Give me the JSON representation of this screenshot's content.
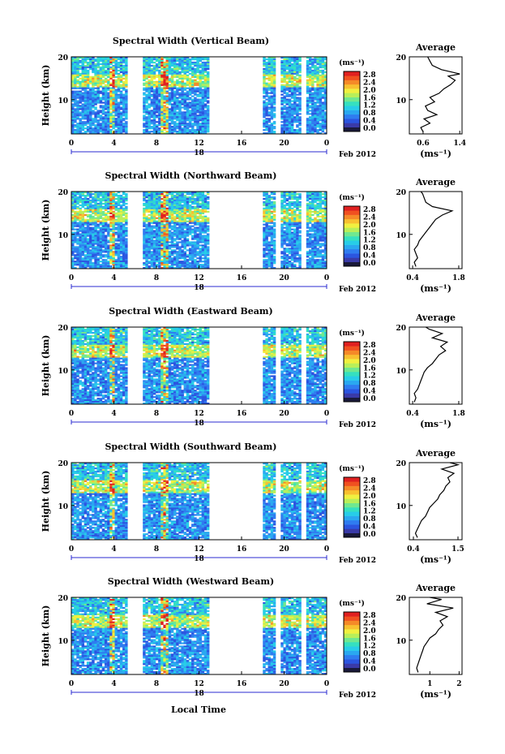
{
  "figure": {
    "xlabel_bottom": "Local Time",
    "colors": {
      "colormap": [
        "#1a1a3a",
        "#3a3aa8",
        "#2b55e0",
        "#2f7cf0",
        "#2aa8f0",
        "#27cde8",
        "#35e0c0",
        "#70e890",
        "#b8ef5a",
        "#f0f040",
        "#f8c030",
        "#f58a28",
        "#f05020",
        "#e02020"
      ],
      "background": "#ffffff",
      "line": "#000000"
    }
  },
  "chart_data": [
    {
      "type": "heatmap",
      "title": "Spectral Width (Vertical Beam)",
      "ylabel": "Height (km)",
      "xlabel": "18",
      "date_label": "Feb 2012",
      "xticks": [
        "0",
        "4",
        "8",
        "12",
        "16",
        "20",
        "0"
      ],
      "yticks": [
        "20",
        "10"
      ],
      "xlim": [
        0,
        24
      ],
      "ylim": [
        2,
        20
      ],
      "colorbar": {
        "unit": "(ms⁻¹)",
        "ticks": [
          "2.8",
          "2.4",
          "2.0",
          "1.6",
          "1.2",
          "0.8",
          "0.4",
          "0.0"
        ],
        "range": [
          0,
          3
        ]
      },
      "data_gaps_hours": [
        [
          5.3,
          6.7
        ],
        [
          13,
          17.9
        ],
        [
          19.3,
          19.6
        ],
        [
          21.7,
          22
        ]
      ],
      "average": {
        "title": "Average",
        "xlabel": "(ms⁻¹)",
        "xticks": [
          "0.6",
          "1.4"
        ],
        "xtick_values": [
          0.6,
          1.4
        ],
        "xlim": [
          0.3,
          1.45
        ],
        "yticks": [
          "20",
          "10"
        ],
        "ylim": [
          2,
          20
        ],
        "profile": [
          [
            0.6,
            2.5
          ],
          [
            0.55,
            3.5
          ],
          [
            0.75,
            4.5
          ],
          [
            0.62,
            5.5
          ],
          [
            0.9,
            6.5
          ],
          [
            0.7,
            7.5
          ],
          [
            0.65,
            8.5
          ],
          [
            0.85,
            9.5
          ],
          [
            0.75,
            10.5
          ],
          [
            0.95,
            11.5
          ],
          [
            1.05,
            12.5
          ],
          [
            1.2,
            13.5
          ],
          [
            1.3,
            14.5
          ],
          [
            1.15,
            15.5
          ],
          [
            1.4,
            16
          ],
          [
            1.0,
            17
          ],
          [
            0.8,
            18
          ],
          [
            0.75,
            19
          ],
          [
            0.7,
            20
          ]
        ]
      }
    },
    {
      "type": "heatmap",
      "title": "Spectral Width (Northward Beam)",
      "ylabel": "Height (km)",
      "xlabel": "18",
      "date_label": "Feb 2012",
      "xticks": [
        "0",
        "4",
        "8",
        "12",
        "16",
        "20",
        "0"
      ],
      "yticks": [
        "20",
        "10"
      ],
      "xlim": [
        0,
        24
      ],
      "ylim": [
        2,
        20
      ],
      "colorbar": {
        "unit": "(ms⁻¹)",
        "ticks": [
          "2.8",
          "2.4",
          "2.0",
          "1.6",
          "1.2",
          "0.8",
          "0.4",
          "0.0"
        ],
        "range": [
          0,
          3
        ]
      },
      "data_gaps_hours": [
        [
          5.3,
          6.7
        ],
        [
          13,
          17.9
        ],
        [
          19.3,
          19.6
        ],
        [
          21.7,
          22
        ]
      ],
      "average": {
        "title": "Average",
        "xlabel": "(ms⁻¹)",
        "xticks": [
          "0.4",
          "1.8"
        ],
        "xtick_values": [
          0.4,
          1.8
        ],
        "xlim": [
          0.3,
          1.9
        ],
        "yticks": [
          "20",
          "10"
        ],
        "ylim": [
          2,
          20
        ],
        "profile": [
          [
            0.5,
            2.5
          ],
          [
            0.45,
            3.5
          ],
          [
            0.55,
            4.5
          ],
          [
            0.5,
            5.5
          ],
          [
            0.45,
            6.5
          ],
          [
            0.55,
            7.5
          ],
          [
            0.6,
            8.5
          ],
          [
            0.7,
            9.5
          ],
          [
            0.8,
            10.5
          ],
          [
            0.9,
            11.5
          ],
          [
            1.0,
            12.5
          ],
          [
            1.1,
            13.5
          ],
          [
            1.3,
            14.5
          ],
          [
            1.6,
            15.5
          ],
          [
            1.0,
            16.5
          ],
          [
            0.8,
            17.5
          ],
          [
            0.75,
            18.5
          ],
          [
            0.7,
            19.5
          ],
          [
            0.65,
            20
          ]
        ]
      }
    },
    {
      "type": "heatmap",
      "title": "Spectral Width (Eastward Beam)",
      "ylabel": "Height (km)",
      "xlabel": "18",
      "date_label": "Feb 2012",
      "xticks": [
        "0",
        "4",
        "8",
        "12",
        "16",
        "20",
        "0"
      ],
      "yticks": [
        "20",
        "10"
      ],
      "xlim": [
        0,
        24
      ],
      "ylim": [
        2,
        20
      ],
      "colorbar": {
        "unit": "(ms⁻¹)",
        "ticks": [
          "2.8",
          "2.4",
          "2.0",
          "1.6",
          "1.2",
          "0.8",
          "0.4",
          "0.0"
        ],
        "range": [
          0,
          3
        ]
      },
      "data_gaps_hours": [
        [
          5.3,
          6.7
        ],
        [
          13,
          17.9
        ],
        [
          19.3,
          19.6
        ],
        [
          21.7,
          22
        ]
      ],
      "average": {
        "title": "Average",
        "xlabel": "(ms⁻¹)",
        "xticks": [
          "0.4",
          "1.8"
        ],
        "xtick_values": [
          0.4,
          1.8
        ],
        "xlim": [
          0.3,
          1.9
        ],
        "yticks": [
          "20",
          "10"
        ],
        "ylim": [
          2,
          20
        ],
        "profile": [
          [
            0.45,
            2.5
          ],
          [
            0.5,
            3.5
          ],
          [
            0.45,
            4.5
          ],
          [
            0.55,
            5.5
          ],
          [
            0.6,
            6.5
          ],
          [
            0.65,
            7.5
          ],
          [
            0.7,
            8.5
          ],
          [
            0.75,
            9.5
          ],
          [
            0.85,
            10.5
          ],
          [
            1.0,
            11.5
          ],
          [
            1.1,
            12.5
          ],
          [
            1.2,
            13.5
          ],
          [
            1.4,
            14.5
          ],
          [
            1.25,
            15.5
          ],
          [
            1.45,
            16.5
          ],
          [
            1.0,
            17.5
          ],
          [
            1.3,
            18.5
          ],
          [
            0.9,
            19.5
          ],
          [
            0.8,
            20
          ]
        ]
      }
    },
    {
      "type": "heatmap",
      "title": "Spectral Width (Southward Beam)",
      "ylabel": "Height (km)",
      "xlabel": "18",
      "date_label": "Feb 2012",
      "xticks": [
        "0",
        "4",
        "8",
        "12",
        "16",
        "20",
        "0"
      ],
      "yticks": [
        "20",
        "10"
      ],
      "xlim": [
        0,
        24
      ],
      "ylim": [
        2,
        20
      ],
      "colorbar": {
        "unit": "(ms⁻¹)",
        "ticks": [
          "2.8",
          "2.4",
          "2.0",
          "1.6",
          "1.2",
          "0.8",
          "0.4",
          "0.0"
        ],
        "range": [
          0,
          3
        ]
      },
      "data_gaps_hours": [
        [
          5.3,
          6.7
        ],
        [
          13,
          17.9
        ],
        [
          19.3,
          19.6
        ],
        [
          21.7,
          22
        ]
      ],
      "average": {
        "title": "Average",
        "xlabel": "(ms⁻¹)",
        "xticks": [
          "0.4",
          "1.5"
        ],
        "xtick_values": [
          0.4,
          1.5
        ],
        "xlim": [
          0.3,
          1.6
        ],
        "yticks": [
          "20",
          "10"
        ],
        "ylim": [
          2,
          20
        ],
        "profile": [
          [
            0.5,
            2.5
          ],
          [
            0.45,
            3.5
          ],
          [
            0.5,
            4.5
          ],
          [
            0.55,
            5.5
          ],
          [
            0.6,
            6.5
          ],
          [
            0.7,
            7.5
          ],
          [
            0.75,
            8.5
          ],
          [
            0.8,
            9.5
          ],
          [
            0.9,
            10.5
          ],
          [
            1.0,
            11.5
          ],
          [
            1.05,
            12.5
          ],
          [
            1.15,
            13.5
          ],
          [
            1.2,
            14.5
          ],
          [
            1.3,
            15.5
          ],
          [
            1.25,
            16.5
          ],
          [
            1.4,
            17.5
          ],
          [
            1.1,
            18.5
          ],
          [
            1.5,
            19.5
          ],
          [
            1.3,
            20
          ]
        ]
      }
    },
    {
      "type": "heatmap",
      "title": "Spectral Width (Westward Beam)",
      "ylabel": "Height (km)",
      "xlabel": "18",
      "date_label": "Feb 2012",
      "xticks": [
        "0",
        "4",
        "8",
        "12",
        "16",
        "20",
        "0"
      ],
      "yticks": [
        "20",
        "10"
      ],
      "xlim": [
        0,
        24
      ],
      "ylim": [
        2,
        20
      ],
      "colorbar": {
        "unit": "(ms⁻¹)",
        "ticks": [
          "2.8",
          "2.4",
          "2.0",
          "1.6",
          "1.2",
          "0.8",
          "0.4",
          "0.0"
        ],
        "range": [
          0,
          3
        ]
      },
      "data_gaps_hours": [
        [
          5.3,
          6.7
        ],
        [
          13,
          17.9
        ],
        [
          19.3,
          19.6
        ],
        [
          21.7,
          22
        ]
      ],
      "average": {
        "title": "Average",
        "xlabel": "(ms⁻¹)",
        "xticks": [
          "1",
          "2"
        ],
        "xtick_values": [
          1,
          2
        ],
        "xlim": [
          0.3,
          2.1
        ],
        "yticks": [
          "20",
          "10"
        ],
        "ylim": [
          2,
          20
        ],
        "profile": [
          [
            0.6,
            2.5
          ],
          [
            0.55,
            3.5
          ],
          [
            0.6,
            4.5
          ],
          [
            0.65,
            5.5
          ],
          [
            0.7,
            6.5
          ],
          [
            0.75,
            7.5
          ],
          [
            0.8,
            8.5
          ],
          [
            0.9,
            9.5
          ],
          [
            1.0,
            10.5
          ],
          [
            1.2,
            11.5
          ],
          [
            1.3,
            12.5
          ],
          [
            1.45,
            13.5
          ],
          [
            1.35,
            14.5
          ],
          [
            1.6,
            15.5
          ],
          [
            1.2,
            16.5
          ],
          [
            1.8,
            17.5
          ],
          [
            0.9,
            18.5
          ],
          [
            1.4,
            19.5
          ],
          [
            1.0,
            20
          ]
        ]
      }
    }
  ]
}
